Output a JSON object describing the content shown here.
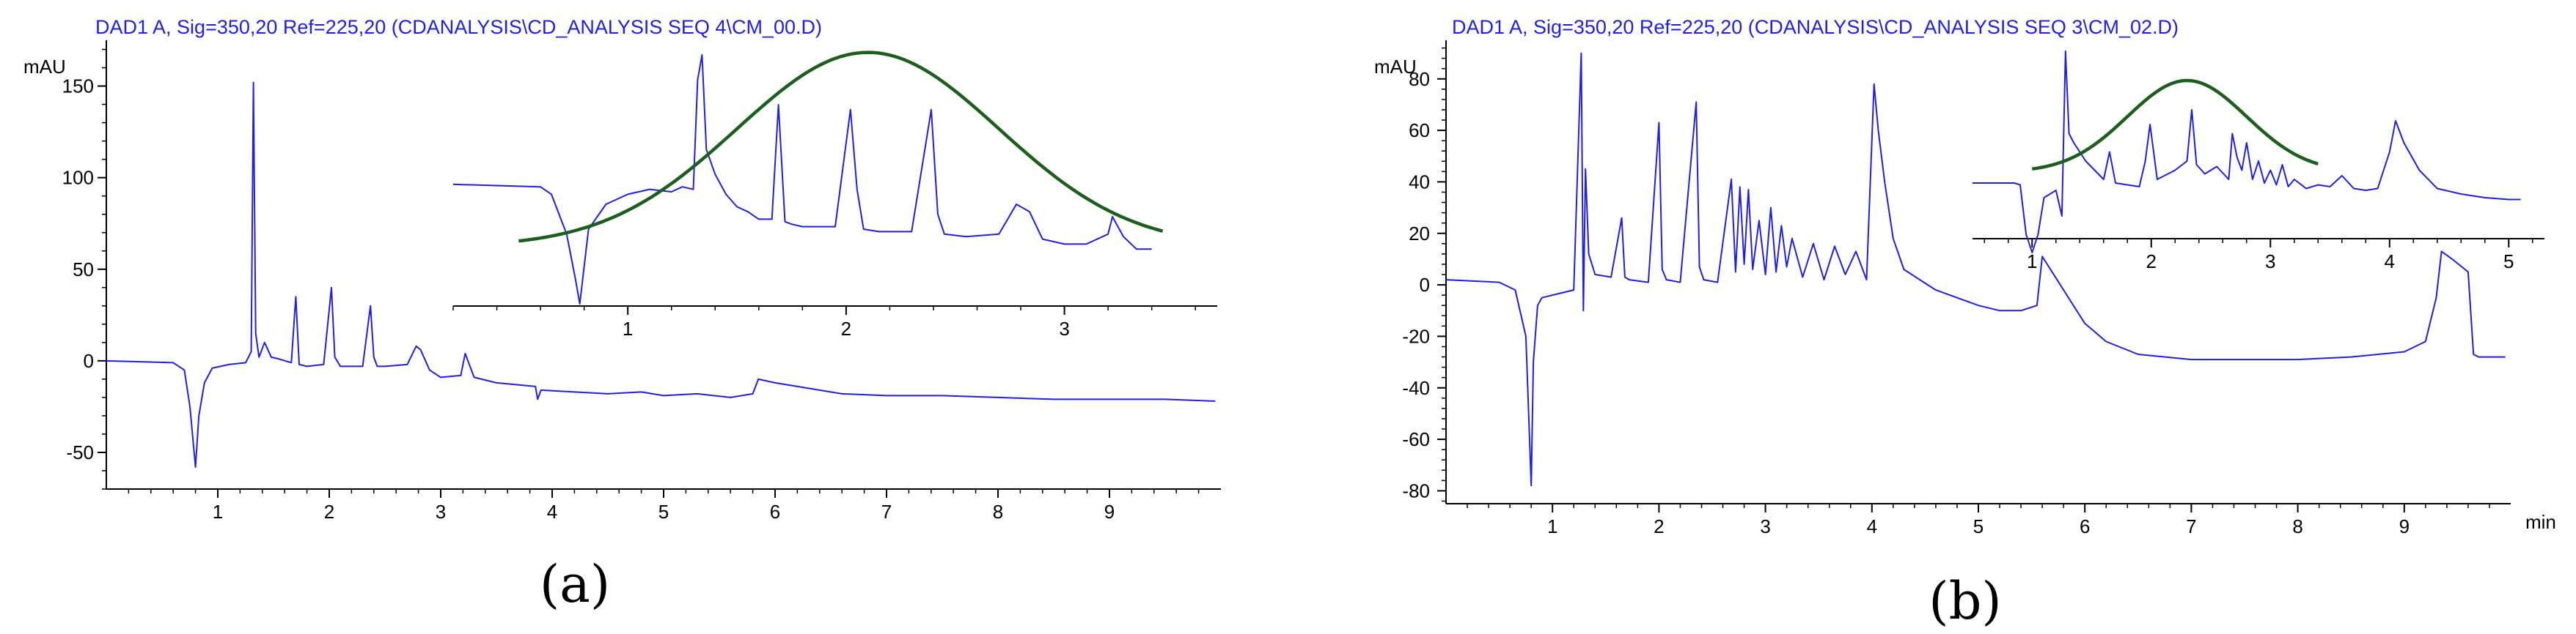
{
  "colors": {
    "trace": "#1f1fe6",
    "fit": "#1c5e1c",
    "title": "#1f1fe6",
    "axis": "#000000",
    "text": "#000000"
  },
  "chart_data": [
    {
      "type": "line",
      "panel": "(a)",
      "title": "DAD1 A, Sig=350,20 Ref=225,20 (CDANALYSIS\\CD_ANALYSIS SEQ 4\\CM_00.D)",
      "ylabel": "mAU",
      "xlabel": "",
      "xlim": [
        0,
        10
      ],
      "ylim": [
        -70,
        175
      ],
      "xticks": [
        1,
        2,
        3,
        4,
        5,
        6,
        7,
        8,
        9
      ],
      "yticks": [
        -50,
        0,
        50,
        100,
        150
      ],
      "xticklabels": [
        "1",
        "2",
        "3",
        "4",
        "5",
        "6",
        "7",
        "8",
        "9"
      ],
      "yticklabels": [
        "-50",
        "0",
        "50",
        "100",
        "150"
      ],
      "series": [
        {
          "name": "DAD1 A trace",
          "x": [
            0,
            0.6,
            0.7,
            0.75,
            0.8,
            0.83,
            0.88,
            0.95,
            1.1,
            1.25,
            1.3,
            1.32,
            1.34,
            1.37,
            1.42,
            1.48,
            1.55,
            1.66,
            1.7,
            1.73,
            1.8,
            1.95,
            2.02,
            2.05,
            2.1,
            2.3,
            2.37,
            2.4,
            2.43,
            2.5,
            2.7,
            2.78,
            2.82,
            2.9,
            3.0,
            3.18,
            3.22,
            3.3,
            3.5,
            3.85,
            3.87,
            3.9,
            4.2,
            4.5,
            4.8,
            5.0,
            5.3,
            5.6,
            5.8,
            5.85,
            6.0,
            6.3,
            6.6,
            7.0,
            7.5,
            8.0,
            8.5,
            9.0,
            9.5,
            9.95
          ],
          "y": [
            0,
            -1,
            -5,
            -25,
            -58,
            -30,
            -12,
            -4,
            -2,
            -1,
            5,
            152,
            15,
            2,
            10,
            2,
            1,
            -1,
            35,
            -2,
            -3,
            -2,
            40,
            2,
            -3,
            -3,
            30,
            2,
            -3,
            -3,
            -2,
            8,
            6,
            -5,
            -9,
            -8,
            4,
            -9,
            -12,
            -14,
            -21,
            -16,
            -17,
            -18,
            -17,
            -19,
            -18,
            -20,
            -18,
            -10,
            -12,
            -15,
            -18,
            -19,
            -19,
            -20,
            -21,
            -21,
            -21,
            -22
          ]
        }
      ],
      "inset": {
        "xlim": [
          0.2,
          3.7
        ],
        "ylim": [
          0,
          1
        ],
        "xticks": [
          1,
          2,
          3
        ],
        "xticklabels": [
          "1",
          "2",
          "3"
        ],
        "trace": {
          "x": [
            0.2,
            0.6,
            0.65,
            0.72,
            0.76,
            0.78,
            0.82,
            0.9,
            1.0,
            1.1,
            1.2,
            1.25,
            1.3,
            1.32,
            1.34,
            1.36,
            1.4,
            1.45,
            1.5,
            1.55,
            1.6,
            1.66,
            1.69,
            1.72,
            1.75,
            1.8,
            1.95,
            2.02,
            2.05,
            2.08,
            2.15,
            2.3,
            2.39,
            2.42,
            2.45,
            2.55,
            2.7,
            2.78,
            2.84,
            2.9,
            3.0,
            3.1,
            3.2,
            3.22,
            3.27,
            3.33,
            3.4
          ],
          "y": [
            0.48,
            0.47,
            0.44,
            0.28,
            0.1,
            0.0,
            0.3,
            0.4,
            0.44,
            0.46,
            0.45,
            0.47,
            0.46,
            0.9,
            1.0,
            0.62,
            0.52,
            0.44,
            0.39,
            0.37,
            0.34,
            0.34,
            0.8,
            0.33,
            0.32,
            0.31,
            0.31,
            0.78,
            0.46,
            0.3,
            0.29,
            0.29,
            0.78,
            0.36,
            0.28,
            0.27,
            0.28,
            0.4,
            0.37,
            0.26,
            0.24,
            0.24,
            0.28,
            0.35,
            0.27,
            0.22,
            0.22
          ]
        },
        "fit": {
          "type": "gaussian",
          "amplitude": 0.78,
          "baseline": 0.23,
          "center": 2.1,
          "sigma": 0.6,
          "x_range": [
            0.5,
            3.45
          ]
        }
      }
    },
    {
      "type": "line",
      "panel": "(b)",
      "title": "DAD1 A, Sig=350,20 Ref=225,20 (CDANALYSIS\\CD_ANALYSIS SEQ 3\\CM_02.D)",
      "ylabel": "mAU",
      "xlabel": "min",
      "xlim": [
        0,
        10
      ],
      "ylim": [
        -85,
        95
      ],
      "xticks": [
        1,
        2,
        3,
        4,
        5,
        6,
        7,
        8,
        9
      ],
      "yticks": [
        -80,
        -60,
        -40,
        -20,
        0,
        20,
        40,
        60,
        80
      ],
      "xticklabels": [
        "1",
        "2",
        "3",
        "4",
        "5",
        "6",
        "7",
        "8",
        "9"
      ],
      "yticklabels": [
        "-80",
        "-60",
        "-40",
        "-20",
        "0",
        "20",
        "40",
        "60",
        "80"
      ],
      "series": [
        {
          "name": "DAD1 A trace",
          "x": [
            0,
            0.5,
            0.65,
            0.75,
            0.8,
            0.82,
            0.86,
            0.9,
            1.0,
            1.2,
            1.27,
            1.29,
            1.31,
            1.34,
            1.4,
            1.55,
            1.65,
            1.68,
            1.72,
            1.9,
            2.0,
            2.03,
            2.07,
            2.2,
            2.35,
            2.38,
            2.42,
            2.55,
            2.68,
            2.72,
            2.76,
            2.8,
            2.84,
            2.88,
            2.94,
            3.0,
            3.05,
            3.1,
            3.15,
            3.2,
            3.25,
            3.35,
            3.45,
            3.55,
            3.65,
            3.75,
            3.85,
            3.95,
            4.02,
            4.06,
            4.12,
            4.2,
            4.3,
            4.45,
            4.6,
            4.8,
            5.0,
            5.2,
            5.4,
            5.55,
            5.6,
            5.8,
            6.0,
            6.2,
            6.5,
            7.0,
            7.5,
            8.0,
            8.5,
            9.0,
            9.2,
            9.3,
            9.35,
            9.45,
            9.6,
            9.65,
            9.7,
            9.95
          ],
          "y": [
            2,
            1,
            -2,
            -20,
            -78,
            -30,
            -8,
            -5,
            -4,
            -2,
            90,
            -10,
            45,
            12,
            4,
            3,
            26,
            3,
            2,
            1,
            63,
            6,
            2,
            1,
            71,
            7,
            2,
            1,
            41,
            5,
            38,
            8,
            37,
            6,
            25,
            4,
            30,
            5,
            23,
            7,
            18,
            3,
            16,
            2,
            15,
            4,
            13,
            2,
            78,
            60,
            40,
            18,
            6,
            2,
            -2,
            -5,
            -8,
            -10,
            -10,
            -8,
            11,
            -2,
            -15,
            -22,
            -27,
            -29,
            -29,
            -29,
            -28,
            -26,
            -22,
            -5,
            13,
            10,
            5,
            -27,
            -28,
            -28
          ]
        }
      ],
      "inset": {
        "xlim": [
          0.5,
          5.3
        ],
        "ylim": [
          0,
          1
        ],
        "xticks": [
          1,
          2,
          3,
          4,
          5
        ],
        "xticklabels": [
          "1",
          "2",
          "3",
          "4",
          "5"
        ],
        "trace": {
          "x": [
            0.5,
            0.85,
            0.9,
            0.95,
            1.0,
            1.05,
            1.1,
            1.2,
            1.25,
            1.28,
            1.31,
            1.35,
            1.45,
            1.6,
            1.65,
            1.7,
            1.9,
            1.95,
            1.99,
            2.05,
            2.2,
            2.3,
            2.34,
            2.38,
            2.45,
            2.55,
            2.65,
            2.68,
            2.72,
            2.76,
            2.8,
            2.85,
            2.9,
            2.95,
            3.0,
            3.05,
            3.1,
            3.15,
            3.2,
            3.3,
            3.4,
            3.5,
            3.6,
            3.7,
            3.8,
            3.9,
            4.0,
            4.05,
            4.12,
            4.25,
            4.4,
            4.6,
            4.8,
            5.0,
            5.1
          ],
          "y": [
            0.28,
            0.28,
            0.27,
            0.0,
            -0.1,
            0.0,
            0.2,
            0.24,
            0.1,
            1.0,
            0.55,
            0.5,
            0.4,
            0.3,
            0.45,
            0.28,
            0.26,
            0.4,
            0.6,
            0.3,
            0.35,
            0.4,
            0.68,
            0.38,
            0.33,
            0.37,
            0.3,
            0.55,
            0.42,
            0.35,
            0.5,
            0.3,
            0.4,
            0.28,
            0.35,
            0.27,
            0.38,
            0.26,
            0.3,
            0.25,
            0.27,
            0.26,
            0.32,
            0.25,
            0.24,
            0.25,
            0.45,
            0.62,
            0.5,
            0.35,
            0.25,
            0.22,
            0.2,
            0.19,
            0.19
          ]
        },
        "fit": {
          "type": "gaussian",
          "amplitude": 0.5,
          "baseline": 0.34,
          "center": 2.3,
          "sigma": 0.5,
          "x_range": [
            1.0,
            3.4
          ]
        }
      }
    }
  ]
}
